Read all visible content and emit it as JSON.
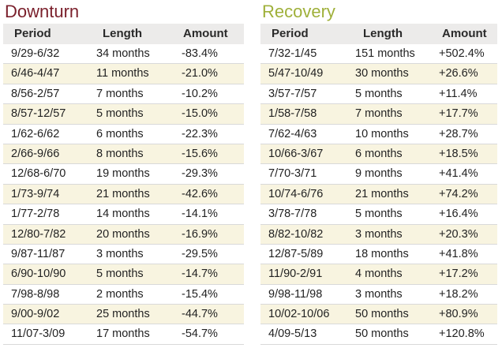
{
  "chart_data": [
    {
      "type": "table",
      "title": "Downturn",
      "columns": [
        "Period",
        "Length",
        "Amount"
      ],
      "rows": [
        [
          "9/29-6/32",
          "34 months",
          "-83.4%"
        ],
        [
          "6/46-4/47",
          "11 months",
          "-21.0%"
        ],
        [
          "8/56-2/57",
          "7 months",
          "-10.2%"
        ],
        [
          "8/57-12/57",
          "5 months",
          "-15.0%"
        ],
        [
          "1/62-6/62",
          "6 months",
          "-22.3%"
        ],
        [
          "2/66-9/66",
          "8 months",
          "-15.6%"
        ],
        [
          "12/68-6/70",
          "19 months",
          "-29.3%"
        ],
        [
          "1/73-9/74",
          "21 months",
          "-42.6%"
        ],
        [
          "1/77-2/78",
          "14 months",
          "-14.1%"
        ],
        [
          "12/80-7/82",
          "20 months",
          "-16.9%"
        ],
        [
          "9/87-11/87",
          "3 months",
          "-29.5%"
        ],
        [
          "6/90-10/90",
          "5 months",
          "-14.7%"
        ],
        [
          "7/98-8/98",
          "2 months",
          "-15.4%"
        ],
        [
          "9/00-9/02",
          "25 months",
          "-44.7%"
        ],
        [
          "11/07-3/09",
          "17 months",
          "-54.7%"
        ]
      ]
    },
    {
      "type": "table",
      "title": "Recovery",
      "columns": [
        "Period",
        "Length",
        "Amount"
      ],
      "rows": [
        [
          "7/32-1/45",
          "151 months",
          "+502.4%"
        ],
        [
          "5/47-10/49",
          "30 months",
          "+26.6%"
        ],
        [
          "3/57-7/57",
          "5 months",
          "+11.4%"
        ],
        [
          "1/58-7/58",
          "7 months",
          "+17.7%"
        ],
        [
          "7/62-4/63",
          "10 months",
          "+28.7%"
        ],
        [
          "10/66-3/67",
          "6 months",
          "+18.5%"
        ],
        [
          "7/70-3/71",
          "9 months",
          "+41.4%"
        ],
        [
          "10/74-6/76",
          "21 months",
          "+74.2%"
        ],
        [
          "3/78-7/78",
          "5 months",
          "+16.4%"
        ],
        [
          "8/82-10/82",
          "3 months",
          "+20.3%"
        ],
        [
          "12/87-5/89",
          "18 months",
          "+41.8%"
        ],
        [
          "11/90-2/91",
          "4 months",
          "+17.2%"
        ],
        [
          "9/98-11/98",
          "3 months",
          "+18.2%"
        ],
        [
          "10/02-10/06",
          "50 months",
          "+80.9%"
        ],
        [
          "4/09-5/13",
          "50 months",
          "+120.8%"
        ]
      ]
    }
  ],
  "colors": {
    "downturn_title": "#7a1f2b",
    "recovery_title": "#9fb03a",
    "header_bg": "#ecebea",
    "band_bg": "#f8f4e0"
  }
}
